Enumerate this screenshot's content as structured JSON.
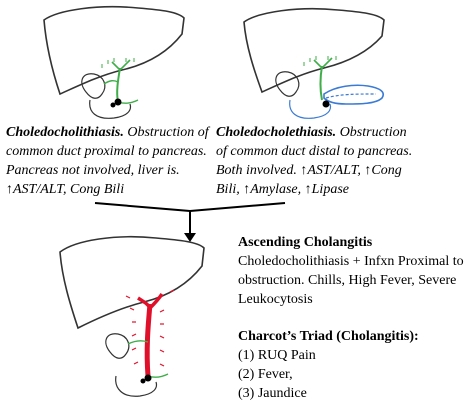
{
  "left_panel": {
    "title": "Choledocholithiasis.",
    "line1_rest": " Obstruction of",
    "line2": "common duct proximal to pancreas.",
    "line3": "Pancreas not involved, liver is.",
    "line4": "↑AST/ALT, Cong Bili"
  },
  "right_panel": {
    "title": "Choledocholethiasis.",
    "line1_rest": " Obstruction",
    "line2": "of common duct distal to pancreas.",
    "line3": "Both involved. ↑AST/ALT, ↑Cong",
    "line4": "Bili, ↑Amylase, ↑Lipase"
  },
  "ascending": {
    "heading": "Ascending Cholangitis",
    "line1": "Choledocholithiasis + Infxn Proximal to",
    "line2": "obstruction. Chills, High Fever, Severe",
    "line3": "Leukocytosis"
  },
  "charcot": {
    "heading": "Charcot’s Triad (Cholangitis):",
    "items": [
      "(1) RUQ Pain",
      "(2) Fever,",
      "(3) Jaundice"
    ]
  },
  "colors": {
    "outline": "#333333",
    "duct": "#3fae49",
    "pancreas_blue": "#3a7bd5",
    "infection_red": "#e0102a",
    "stone": "#000000"
  }
}
